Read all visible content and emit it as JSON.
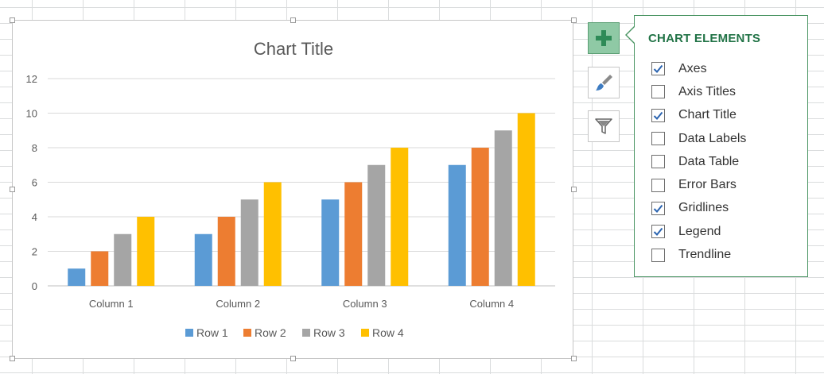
{
  "chart_data": {
    "type": "bar",
    "title": "Chart Title",
    "categories": [
      "Column 1",
      "Column 2",
      "Column 3",
      "Column 4"
    ],
    "series": [
      {
        "name": "Row 1",
        "color": "#5b9bd5",
        "values": [
          1,
          3,
          5,
          7
        ]
      },
      {
        "name": "Row 2",
        "color": "#ed7d31",
        "values": [
          2,
          4,
          6,
          8
        ]
      },
      {
        "name": "Row 3",
        "color": "#a5a5a5",
        "values": [
          3,
          5,
          7,
          9
        ]
      },
      {
        "name": "Row 4",
        "color": "#ffc000",
        "values": [
          4,
          6,
          8,
          10
        ]
      }
    ],
    "ylim": [
      0,
      12
    ],
    "yticks": [
      "0",
      "2",
      "4",
      "6",
      "8",
      "10",
      "12"
    ],
    "grid": true,
    "legend": "bottom"
  },
  "side_buttons": [
    {
      "icon": "plus-icon",
      "active": true
    },
    {
      "icon": "paintbrush-icon",
      "active": false
    },
    {
      "icon": "filter-icon",
      "active": false
    }
  ],
  "panel": {
    "title": "CHART ELEMENTS",
    "items": [
      {
        "label": "Axes",
        "checked": true
      },
      {
        "label": "Axis Titles",
        "checked": false
      },
      {
        "label": "Chart Title",
        "checked": true
      },
      {
        "label": "Data Labels",
        "checked": false
      },
      {
        "label": "Data Table",
        "checked": false
      },
      {
        "label": "Error Bars",
        "checked": false
      },
      {
        "label": "Gridlines",
        "checked": true
      },
      {
        "label": "Legend",
        "checked": true
      },
      {
        "label": "Trendline",
        "checked": false
      }
    ]
  }
}
